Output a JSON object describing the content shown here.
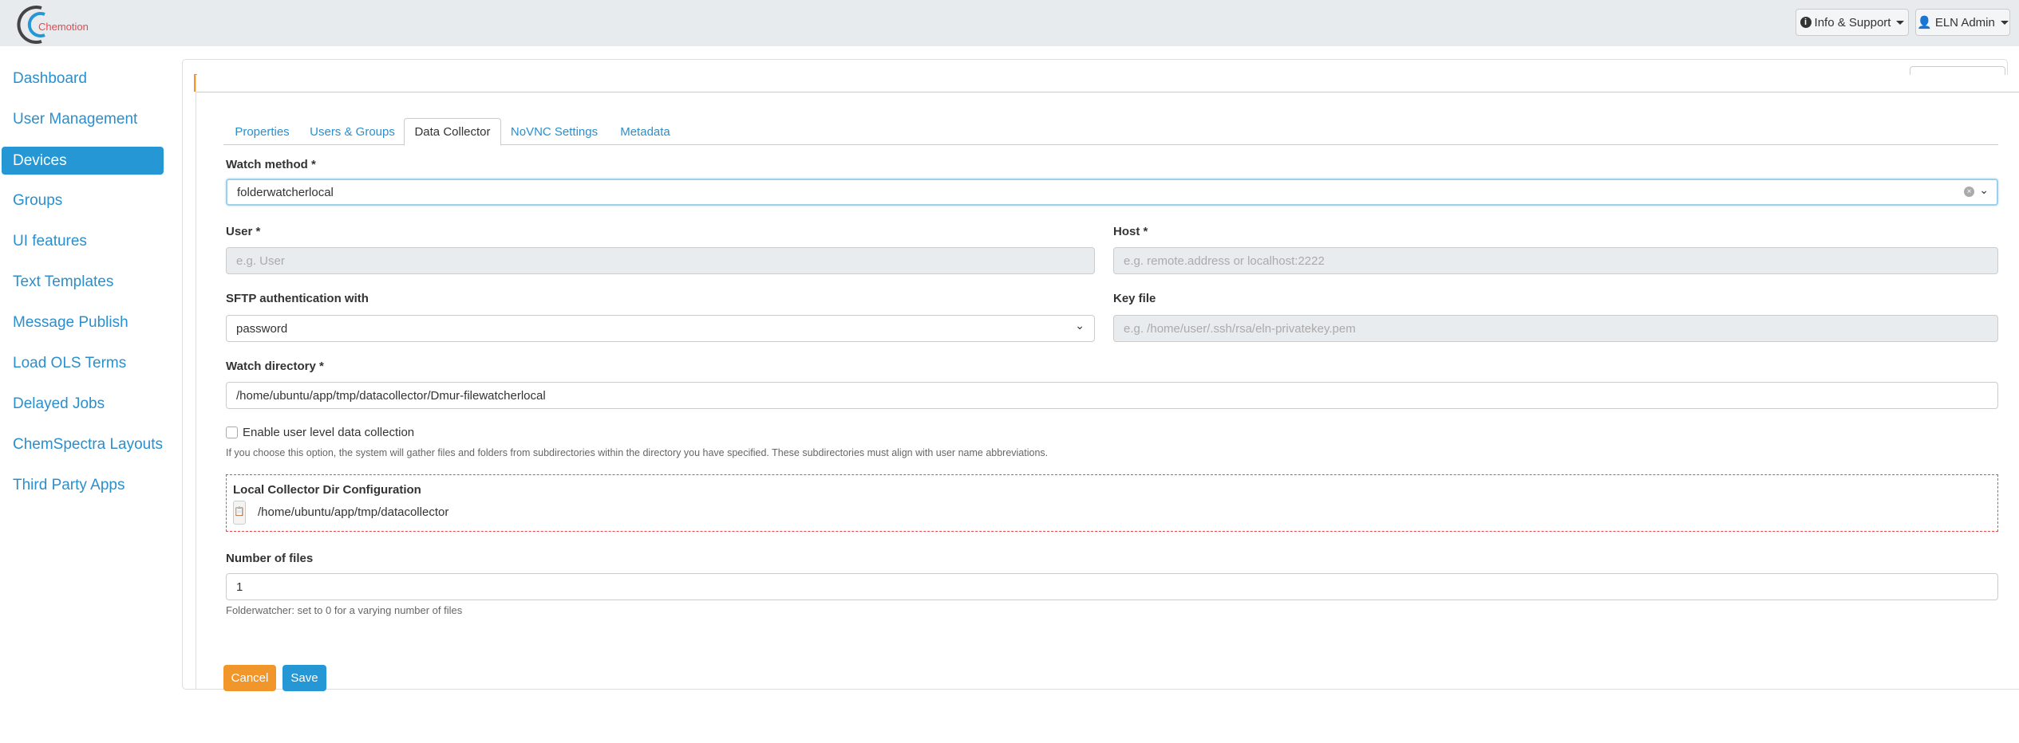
{
  "header": {
    "logo_text": "Chemotion",
    "info_support": "Info & Support",
    "user_menu": "ELN Admin"
  },
  "sidebar": {
    "items": [
      {
        "label": "Dashboard"
      },
      {
        "label": "User Management"
      },
      {
        "label": "Devices",
        "active": true
      },
      {
        "label": "Groups"
      },
      {
        "label": "UI features"
      },
      {
        "label": "Text Templates"
      },
      {
        "label": "Message Publish"
      },
      {
        "label": "Load OLS Terms"
      },
      {
        "label": "Delayed Jobs"
      },
      {
        "label": "ChemSpectra Layouts"
      },
      {
        "label": "Third Party Apps"
      }
    ]
  },
  "modal": {
    "tabs": [
      {
        "label": "Properties"
      },
      {
        "label": "Users & Groups"
      },
      {
        "label": "Data Collector",
        "active": true
      },
      {
        "label": "NoVNC Settings"
      },
      {
        "label": "Metadata"
      }
    ],
    "watch_method": {
      "label": "Watch method *",
      "value": "folderwatcherlocal"
    },
    "user": {
      "label": "User *",
      "placeholder": "e.g. User"
    },
    "host": {
      "label": "Host *",
      "placeholder": "e.g. remote.address or localhost:2222"
    },
    "sftp": {
      "label": "SFTP authentication with",
      "value": "password"
    },
    "key_file": {
      "label": "Key file",
      "placeholder": "e.g. /home/user/.ssh/rsa/eln-privatekey.pem"
    },
    "watch_directory": {
      "label": "Watch directory *",
      "value": "/home/ubuntu/app/tmp/datacollector/Dmur-filewatcherlocal"
    },
    "user_level": {
      "label": "Enable user level data collection",
      "checked": false,
      "help": "If you choose this option, the system will gather files and folders from subdirectories within the directory you have specified. These subdirectories must align with user name abbreviations."
    },
    "local_collector": {
      "title": "Local Collector Dir Configuration",
      "path": "/home/ubuntu/app/tmp/datacollector"
    },
    "number_of_files": {
      "label": "Number of files",
      "value": "1",
      "help": "Folderwatcher: set to 0 for a varying number of files"
    },
    "cancel": "Cancel",
    "save": "Save"
  },
  "colors": {
    "primary": "#2597d4",
    "warning": "#f0962a",
    "link": "#2a8fcc",
    "dashed_border": "#e8474c"
  }
}
